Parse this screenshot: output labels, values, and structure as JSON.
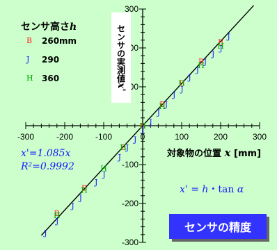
{
  "chart_data": {
    "type": "scatter",
    "title": "センサの精度",
    "xlabel": {
      "text": "対象物の位置",
      "var": "x",
      "unit": "[mm]"
    },
    "ylabel": {
      "text": "センサの実測値",
      "var": "x'"
    },
    "xlim": [
      -300,
      300
    ],
    "ylim": [
      -300,
      300
    ],
    "x_ticks": [
      -300,
      -200,
      -100,
      0,
      100,
      200,
      300
    ],
    "y_ticks": [
      -300,
      -200,
      -100,
      100,
      200,
      300
    ],
    "legend_title": {
      "text": "センサ高さ",
      "var": "h"
    },
    "series": [
      {
        "name": "260mm",
        "marker": "B",
        "color": "#ff2020",
        "points": [
          [
            -220,
            -225
          ],
          [
            -150,
            -160
          ],
          [
            -50,
            -55
          ],
          [
            0,
            0
          ],
          [
            50,
            55
          ],
          [
            100,
            110
          ],
          [
            150,
            165
          ],
          [
            200,
            215
          ]
        ]
      },
      {
        "name": "290",
        "marker": "J",
        "color": "#1a1aff",
        "points": [
          [
            -260,
            -275
          ],
          [
            -230,
            -245
          ],
          [
            -190,
            -205
          ],
          [
            -170,
            -185
          ],
          [
            -130,
            -145
          ],
          [
            -110,
            -125
          ],
          [
            -70,
            -80
          ],
          [
            -50,
            -55
          ],
          [
            -30,
            -35
          ],
          [
            -10,
            -10
          ],
          [
            10,
            10
          ],
          [
            30,
            35
          ],
          [
            50,
            55
          ],
          [
            70,
            80
          ],
          [
            90,
            95
          ],
          [
            110,
            125
          ],
          [
            130,
            145
          ],
          [
            150,
            165
          ],
          [
            170,
            185
          ],
          [
            190,
            200
          ],
          [
            210,
            230
          ]
        ]
      },
      {
        "name": "360",
        "marker": "H",
        "color": "#00aa00",
        "points": [
          [
            -220,
            -230
          ],
          [
            -150,
            -165
          ],
          [
            -100,
            -110
          ],
          [
            -50,
            -55
          ],
          [
            0,
            0
          ],
          [
            50,
            50
          ],
          [
            100,
            110
          ],
          [
            150,
            155
          ],
          [
            200,
            205
          ]
        ]
      }
    ],
    "fit": {
      "slope": 1.085,
      "equation": "x'=1.085x",
      "r2": "R²=0.9992"
    },
    "formula": {
      "lhs": "x'",
      "rhs_h": "h",
      "rhs_tan": "tan",
      "rhs_alpha": "α"
    }
  }
}
